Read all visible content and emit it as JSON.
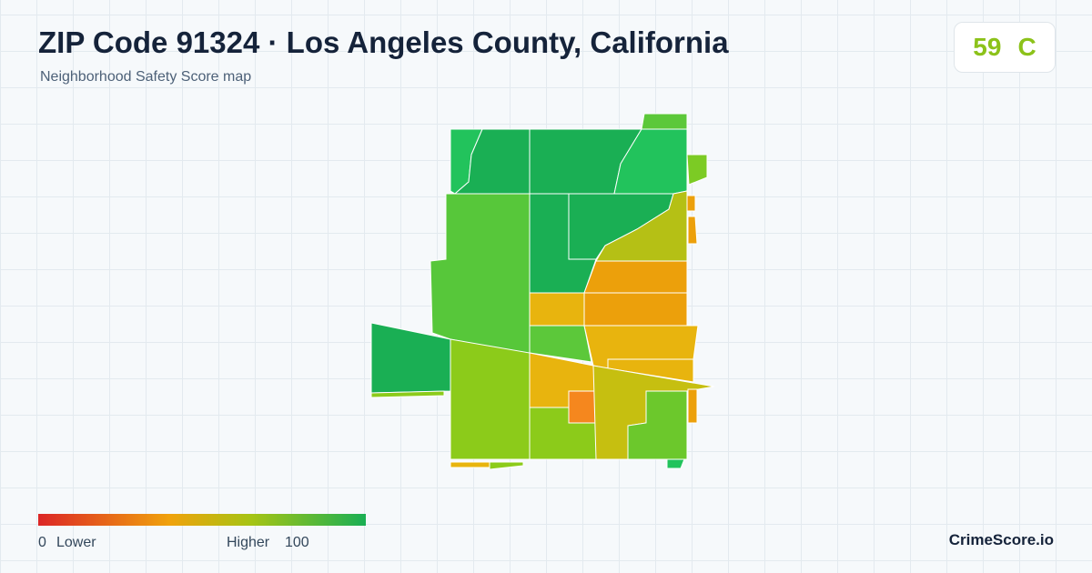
{
  "header": {
    "title": "ZIP Code 91324 · Los Angeles County, California",
    "subtitle": "Neighborhood Safety Score map"
  },
  "score": {
    "value": 59,
    "grade": "C"
  },
  "legend": {
    "min": 0,
    "min_label": "Lower",
    "max_label": "Higher",
    "max": 100
  },
  "brand": "CrimeScore.io"
}
